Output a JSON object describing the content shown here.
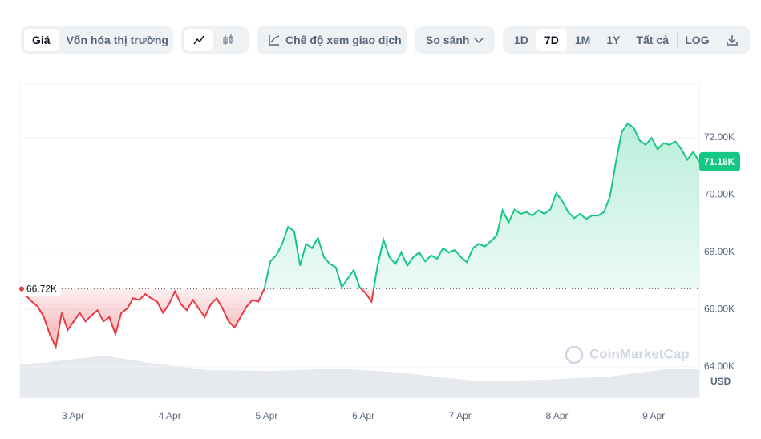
{
  "toolbar": {
    "tabs": [
      "Giá",
      "Vốn hóa thị trường"
    ],
    "trading_view": "Chế độ xem giao dịch",
    "compare": "So sánh",
    "ranges": [
      "1D",
      "7D",
      "1M",
      "1Y",
      "Tất cả"
    ],
    "log": "LOG"
  },
  "chart_data": {
    "type": "line",
    "x_labels": [
      "3 Apr",
      "4 Apr",
      "5 Apr",
      "6 Apr",
      "7 Apr",
      "8 Apr",
      "9 Apr"
    ],
    "values": [
      66720,
      66480,
      66270,
      66090,
      65730,
      65130,
      64680,
      65880,
      65280,
      65580,
      65880,
      65580,
      65790,
      65970,
      65580,
      65730,
      65130,
      65880,
      66030,
      66390,
      66330,
      66540,
      66390,
      66270,
      65880,
      66180,
      66630,
      66180,
      65970,
      66330,
      66030,
      65730,
      66180,
      66390,
      66030,
      65580,
      65370,
      65730,
      66090,
      66330,
      66270,
      66720,
      67680,
      67890,
      68290,
      68890,
      68740,
      67530,
      68290,
      68140,
      68500,
      67830,
      67590,
      67470,
      66780,
      67080,
      67380,
      66780,
      66570,
      66270,
      67530,
      68440,
      67830,
      67590,
      67990,
      67530,
      67830,
      67990,
      67680,
      67890,
      67770,
      68140,
      67990,
      68080,
      67830,
      67650,
      68140,
      68290,
      68200,
      68380,
      68590,
      69460,
      69040,
      69490,
      69340,
      69400,
      69280,
      69460,
      69340,
      69490,
      70060,
      69790,
      69400,
      69190,
      69340,
      69160,
      69280,
      69280,
      69400,
      69940,
      71140,
      72200,
      72500,
      72350,
      71900,
      71750,
      71990,
      71600,
      71810,
      71750,
      71870,
      71600,
      71230,
      71500,
      71160
    ],
    "up_color": "#16c784",
    "down_color": "#ea3943",
    "baseline": {
      "value": 66720,
      "label": "66.72K"
    },
    "last_price": {
      "value": 71160,
      "label": "71.16K"
    },
    "ylim": [
      62900,
      73900
    ],
    "yticks": [
      {
        "value": 64000,
        "label": "64.00K"
      },
      {
        "value": 66000,
        "label": "66.00K"
      },
      {
        "value": 68000,
        "label": "68.00K"
      },
      {
        "value": 70000,
        "label": "70.00K"
      },
      {
        "value": 72000,
        "label": "72.00K"
      }
    ],
    "grid": true,
    "currency": "USD",
    "watermark": "CoinMarketCap"
  }
}
